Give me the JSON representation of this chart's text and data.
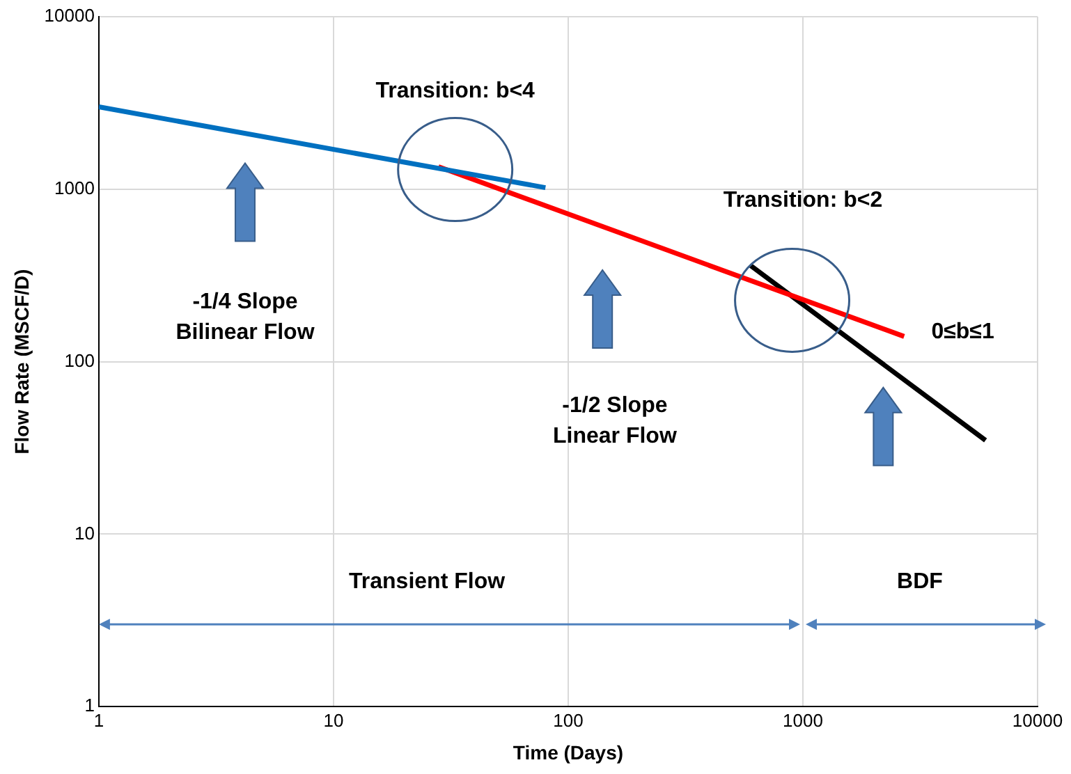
{
  "chart_data": {
    "type": "line",
    "xlabel": "Time (Days)",
    "ylabel": "Flow Rate (MSCF/D)",
    "log": "xy",
    "xlim": [
      1,
      10000
    ],
    "ylim": [
      1,
      10000
    ],
    "xticks": [
      1,
      10,
      100,
      1000,
      10000
    ],
    "yticks": [
      1,
      10,
      100,
      1000,
      10000
    ],
    "grid": true,
    "legend": false,
    "marker": "none",
    "line_style": "solid",
    "series": [
      {
        "color": "#0070c0",
        "x": [
          1,
          80
        ],
        "values": [
          3000,
          1020
        ]
      },
      {
        "color": "#ff0000",
        "x": [
          28,
          2700
        ],
        "values": [
          1350,
          140
        ]
      },
      {
        "color": "#000000",
        "x": [
          600,
          6000
        ],
        "values": [
          360,
          35
        ]
      }
    ],
    "annotations": [
      "Transition: b<4",
      "-1/4 Slope\nBilinear Flow",
      "-1/2 Slope\nLinear Flow",
      "Transition: b<2",
      "0≤b≤1",
      "Transient Flow",
      "BDF"
    ]
  }
}
